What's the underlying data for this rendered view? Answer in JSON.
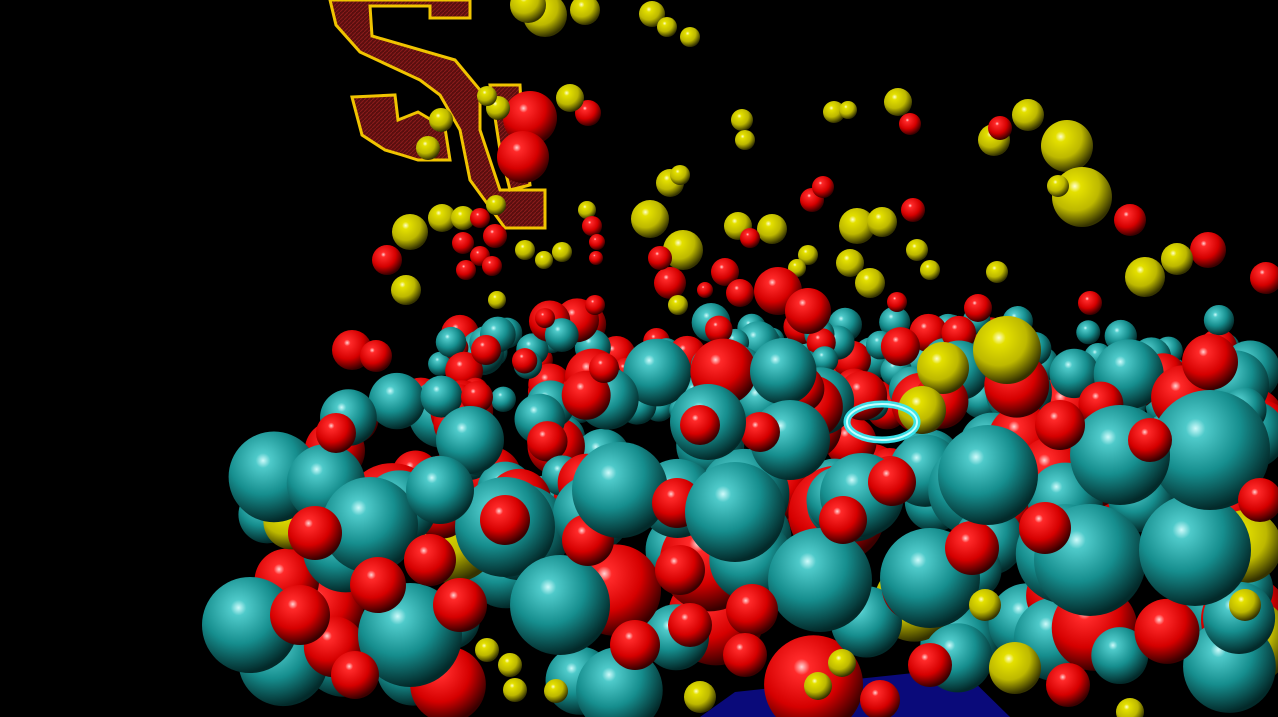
{
  "scene": {
    "background": "#000000",
    "palette": {
      "cyan_ball": "#1a9f9f",
      "red_ball": "#e00000",
      "yellow_ball": "#c9c400",
      "reticle": "#38e8f0",
      "floor": "#0a0a7a",
      "sign_fill": "#6b1010",
      "sign_outline": "#f0c400"
    },
    "reticle": {
      "icon": "ring-reticle-icon"
    },
    "sign": {
      "icon": "maroon-gold-sign-icon"
    }
  }
}
